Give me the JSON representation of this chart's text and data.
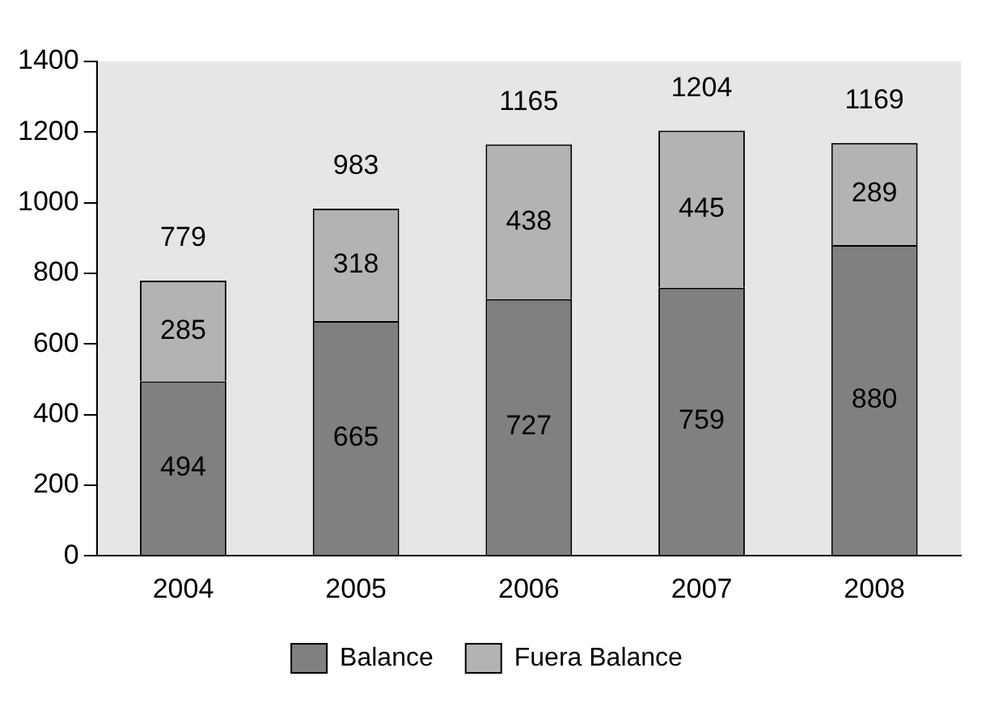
{
  "chart_data": {
    "type": "bar",
    "stacked": true,
    "categories": [
      "2004",
      "2005",
      "2006",
      "2007",
      "2008"
    ],
    "series": [
      {
        "name": "Balance",
        "color": "#808080",
        "values": [
          494,
          665,
          727,
          759,
          880
        ]
      },
      {
        "name": "Fuera Balance",
        "color": "#b3b3b3",
        "values": [
          285,
          318,
          438,
          445,
          289
        ]
      }
    ],
    "ylim": [
      0,
      1400
    ],
    "yticks": [
      0,
      200,
      400,
      600,
      800,
      1000,
      1200,
      1400
    ],
    "grid": false,
    "legend": "bottom",
    "data_labels": true,
    "totals": [
      "779",
      "983",
      "1165",
      "1204",
      "1169"
    ]
  }
}
